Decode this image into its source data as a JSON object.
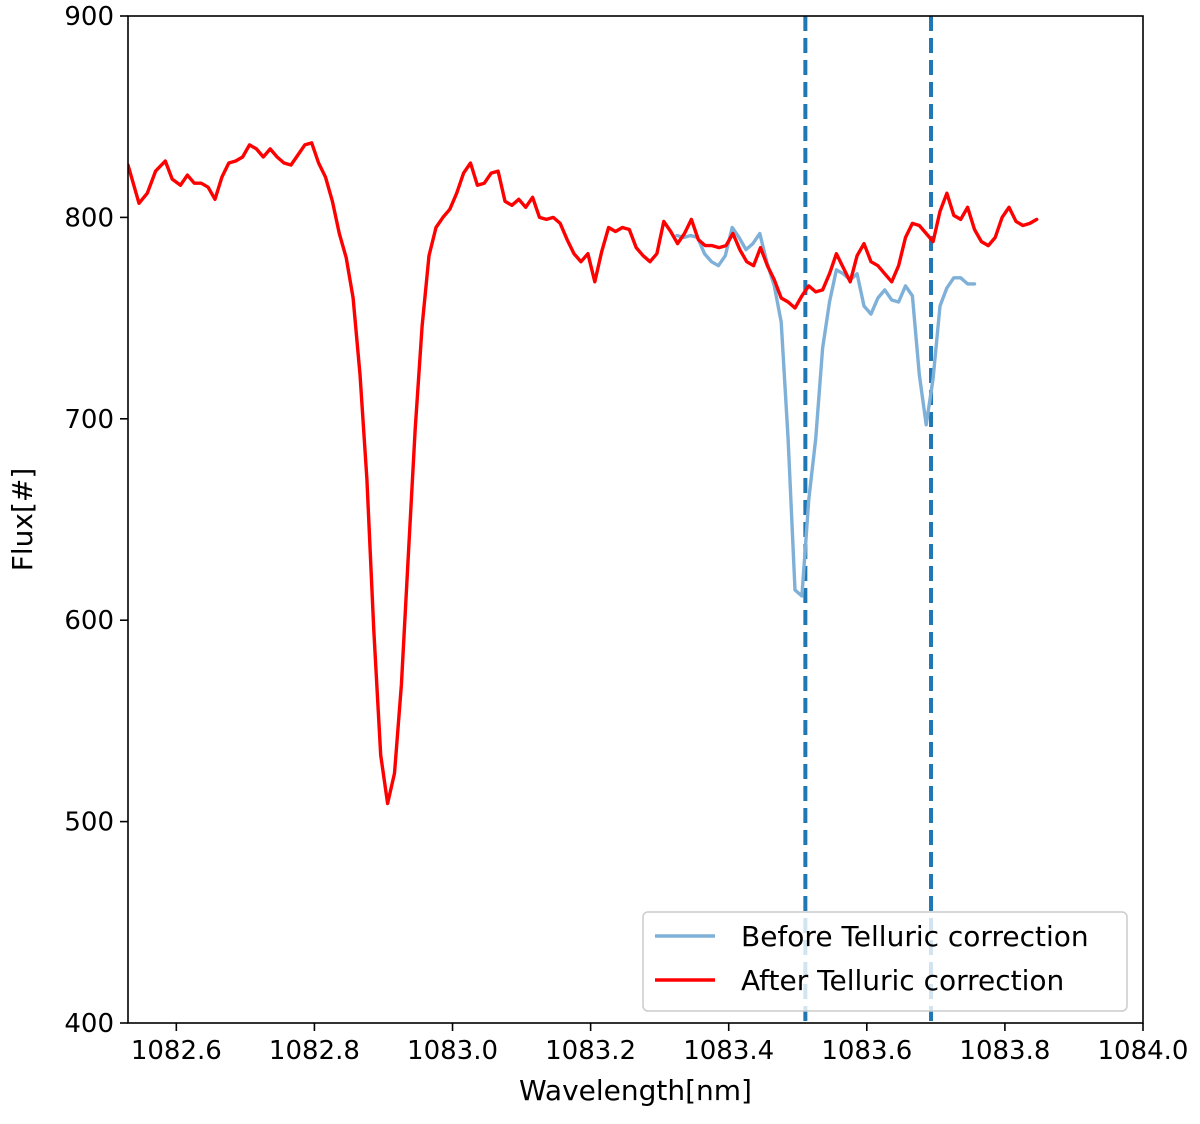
{
  "chart_data": {
    "type": "line",
    "title": "",
    "xlabel": "Wavelength[nm]",
    "ylabel": "Flux[#]",
    "xlim": [
      1082.53,
      1084.0
    ],
    "ylim": [
      400,
      900
    ],
    "xticks": [
      1082.6,
      1082.8,
      1083.0,
      1083.2,
      1083.4,
      1083.6,
      1083.8,
      1084.0
    ],
    "xtick_labels": [
      "1082.6",
      "1082.8",
      "1083.0",
      "1083.2",
      "1083.4",
      "1083.6",
      "1083.8",
      "1084.0"
    ],
    "yticks": [
      400,
      500,
      600,
      700,
      800,
      900
    ],
    "ytick_labels": [
      "400",
      "500",
      "600",
      "700",
      "800",
      "900"
    ],
    "grid": false,
    "legend_position": "lower-right",
    "vlines": [
      {
        "x": 1083.511,
        "color": "#1f77b4",
        "style": "dashed"
      },
      {
        "x": 1083.693,
        "color": "#1f77b4",
        "style": "dashed"
      }
    ],
    "series": [
      {
        "name": "Before Telluric correction",
        "color": "#7fb0d8",
        "points": [
          [
            1083.325,
            791
          ],
          [
            1083.335,
            790
          ],
          [
            1083.345,
            791
          ],
          [
            1083.355,
            790
          ],
          [
            1083.365,
            782
          ],
          [
            1083.375,
            778
          ],
          [
            1083.385,
            776
          ],
          [
            1083.395,
            781
          ],
          [
            1083.405,
            795
          ],
          [
            1083.415,
            790
          ],
          [
            1083.425,
            784
          ],
          [
            1083.435,
            787
          ],
          [
            1083.445,
            792
          ],
          [
            1083.455,
            778
          ],
          [
            1083.466,
            766
          ],
          [
            1083.476,
            748
          ],
          [
            1083.486,
            690
          ],
          [
            1083.496,
            615
          ],
          [
            1083.506,
            612
          ],
          [
            1083.516,
            660
          ],
          [
            1083.526,
            690
          ],
          [
            1083.536,
            735
          ],
          [
            1083.546,
            758
          ],
          [
            1083.556,
            774
          ],
          [
            1083.566,
            772
          ],
          [
            1083.576,
            769
          ],
          [
            1083.586,
            772
          ],
          [
            1083.596,
            756
          ],
          [
            1083.606,
            752
          ],
          [
            1083.616,
            760
          ],
          [
            1083.626,
            764
          ],
          [
            1083.636,
            759
          ],
          [
            1083.646,
            758
          ],
          [
            1083.656,
            766
          ],
          [
            1083.666,
            761
          ],
          [
            1083.676,
            722
          ],
          [
            1083.686,
            697
          ],
          [
            1083.696,
            720
          ],
          [
            1083.706,
            756
          ],
          [
            1083.716,
            765
          ],
          [
            1083.726,
            770
          ],
          [
            1083.736,
            770
          ],
          [
            1083.746,
            767
          ],
          [
            1083.756,
            767
          ]
        ]
      },
      {
        "name": "After Telluric correction",
        "color": "#ff0000",
        "points": [
          [
            1082.53,
            826
          ],
          [
            1082.546,
            807
          ],
          [
            1082.558,
            812
          ],
          [
            1082.57,
            823
          ],
          [
            1082.584,
            828
          ],
          [
            1082.594,
            819
          ],
          [
            1082.606,
            816
          ],
          [
            1082.616,
            821
          ],
          [
            1082.626,
            817
          ],
          [
            1082.636,
            817
          ],
          [
            1082.646,
            815
          ],
          [
            1082.656,
            809
          ],
          [
            1082.666,
            820
          ],
          [
            1082.676,
            827
          ],
          [
            1082.686,
            828
          ],
          [
            1082.696,
            830
          ],
          [
            1082.706,
            836
          ],
          [
            1082.716,
            834
          ],
          [
            1082.726,
            830
          ],
          [
            1082.736,
            834
          ],
          [
            1082.746,
            830
          ],
          [
            1082.756,
            827
          ],
          [
            1082.766,
            826
          ],
          [
            1082.776,
            831
          ],
          [
            1082.786,
            836
          ],
          [
            1082.796,
            837
          ],
          [
            1082.806,
            827
          ],
          [
            1082.816,
            820
          ],
          [
            1082.826,
            808
          ],
          [
            1082.836,
            792
          ],
          [
            1082.846,
            780
          ],
          [
            1082.856,
            760
          ],
          [
            1082.866,
            722
          ],
          [
            1082.876,
            670
          ],
          [
            1082.886,
            595
          ],
          [
            1082.896,
            533
          ],
          [
            1082.906,
            509
          ],
          [
            1082.916,
            524
          ],
          [
            1082.926,
            568
          ],
          [
            1082.936,
            632
          ],
          [
            1082.946,
            695
          ],
          [
            1082.956,
            746
          ],
          [
            1082.966,
            781
          ],
          [
            1082.976,
            795
          ],
          [
            1082.986,
            800
          ],
          [
            1082.996,
            804
          ],
          [
            1083.006,
            812
          ],
          [
            1083.016,
            822
          ],
          [
            1083.026,
            827
          ],
          [
            1083.036,
            816
          ],
          [
            1083.046,
            817
          ],
          [
            1083.056,
            822
          ],
          [
            1083.066,
            823
          ],
          [
            1083.076,
            808
          ],
          [
            1083.086,
            806
          ],
          [
            1083.096,
            809
          ],
          [
            1083.106,
            805
          ],
          [
            1083.116,
            810
          ],
          [
            1083.126,
            800
          ],
          [
            1083.136,
            799
          ],
          [
            1083.146,
            800
          ],
          [
            1083.156,
            797
          ],
          [
            1083.166,
            789
          ],
          [
            1083.176,
            782
          ],
          [
            1083.186,
            778
          ],
          [
            1083.196,
            782
          ],
          [
            1083.206,
            768
          ],
          [
            1083.216,
            783
          ],
          [
            1083.226,
            795
          ],
          [
            1083.236,
            793
          ],
          [
            1083.246,
            795
          ],
          [
            1083.256,
            794
          ],
          [
            1083.266,
            785
          ],
          [
            1083.276,
            781
          ],
          [
            1083.286,
            778
          ],
          [
            1083.296,
            782
          ],
          [
            1083.306,
            798
          ],
          [
            1083.316,
            793
          ],
          [
            1083.326,
            787
          ],
          [
            1083.336,
            792
          ],
          [
            1083.346,
            799
          ],
          [
            1083.356,
            789
          ],
          [
            1083.366,
            786
          ],
          [
            1083.376,
            786
          ],
          [
            1083.386,
            785
          ],
          [
            1083.396,
            786
          ],
          [
            1083.406,
            792
          ],
          [
            1083.416,
            784
          ],
          [
            1083.426,
            778
          ],
          [
            1083.436,
            776
          ],
          [
            1083.446,
            785
          ],
          [
            1083.456,
            776
          ],
          [
            1083.466,
            769
          ],
          [
            1083.476,
            760
          ],
          [
            1083.486,
            758
          ],
          [
            1083.496,
            755
          ],
          [
            1083.506,
            761
          ],
          [
            1083.516,
            766
          ],
          [
            1083.526,
            763
          ],
          [
            1083.536,
            764
          ],
          [
            1083.546,
            772
          ],
          [
            1083.556,
            782
          ],
          [
            1083.566,
            775
          ],
          [
            1083.576,
            768
          ],
          [
            1083.586,
            781
          ],
          [
            1083.596,
            787
          ],
          [
            1083.606,
            778
          ],
          [
            1083.616,
            776
          ],
          [
            1083.626,
            772
          ],
          [
            1083.636,
            768
          ],
          [
            1083.646,
            776
          ],
          [
            1083.656,
            790
          ],
          [
            1083.666,
            797
          ],
          [
            1083.676,
            796
          ],
          [
            1083.686,
            792
          ],
          [
            1083.696,
            788
          ],
          [
            1083.706,
            803
          ],
          [
            1083.716,
            812
          ],
          [
            1083.726,
            801
          ],
          [
            1083.736,
            799
          ],
          [
            1083.746,
            805
          ],
          [
            1083.756,
            794
          ],
          [
            1083.766,
            788
          ],
          [
            1083.776,
            786
          ],
          [
            1083.786,
            790
          ],
          [
            1083.796,
            800
          ],
          [
            1083.806,
            805
          ],
          [
            1083.816,
            798
          ],
          [
            1083.826,
            796
          ],
          [
            1083.836,
            797
          ],
          [
            1083.846,
            799
          ]
        ]
      }
    ]
  }
}
